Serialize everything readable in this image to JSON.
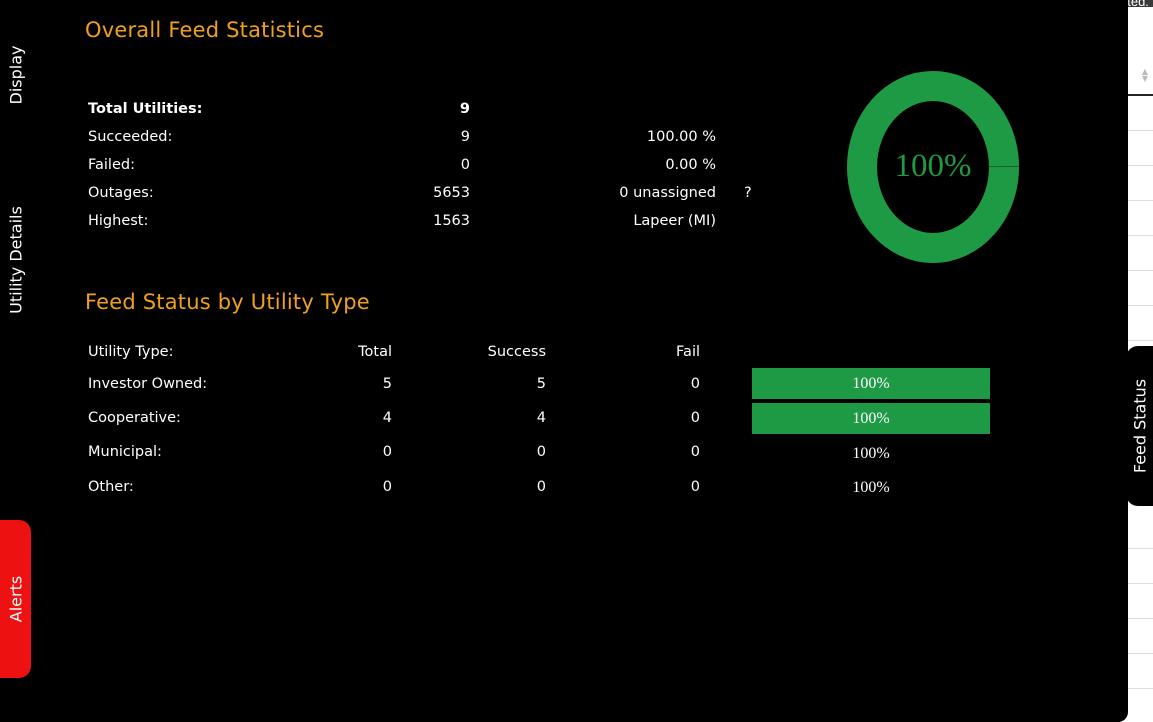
{
  "background_page": {
    "topbar_text": "ated."
  },
  "tabs": {
    "display": "Display",
    "utility_details": "Utility Details",
    "alerts": "Alerts",
    "feed_status": "Feed Status"
  },
  "overall": {
    "title": "Overall Feed Statistics",
    "rows": [
      {
        "label": "Total Utilities:",
        "value": "9",
        "extra": ""
      },
      {
        "label": "Succeeded:",
        "value": "9",
        "extra": "100.00 %"
      },
      {
        "label": "Failed:",
        "value": "0",
        "extra": "0.00 %"
      },
      {
        "label": "Outages:",
        "value": "5653",
        "extra": "0 unassigned",
        "help": "?"
      },
      {
        "label": "Highest:",
        "value": "1563",
        "extra": "Lapeer (MI)"
      }
    ],
    "success_percent": 100,
    "donut_label": "100%"
  },
  "by_type": {
    "title": "Feed Status by Utility Type",
    "headers": {
      "type": "Utility Type:",
      "total": "Total",
      "success": "Success",
      "fail": "Fail"
    },
    "rows": [
      {
        "type": "Investor Owned:",
        "total": "5",
        "success": "5",
        "fail": "0",
        "percent_label": "100%",
        "fill_fraction": 1.0
      },
      {
        "type": "Cooperative:",
        "total": "4",
        "success": "4",
        "fail": "0",
        "percent_label": "100%",
        "fill_fraction": 1.0
      },
      {
        "type": "Municipal:",
        "total": "0",
        "success": "0",
        "fail": "0",
        "percent_label": "100%",
        "fill_fraction": 0
      },
      {
        "type": "Other:",
        "total": "0",
        "success": "0",
        "fail": "0",
        "percent_label": "100%",
        "fill_fraction": 0
      }
    ]
  },
  "colors": {
    "accent_title": "#f0a020",
    "success_green": "#1e9a44",
    "alert_red": "#ee1111",
    "panel_bg": "#000000"
  }
}
